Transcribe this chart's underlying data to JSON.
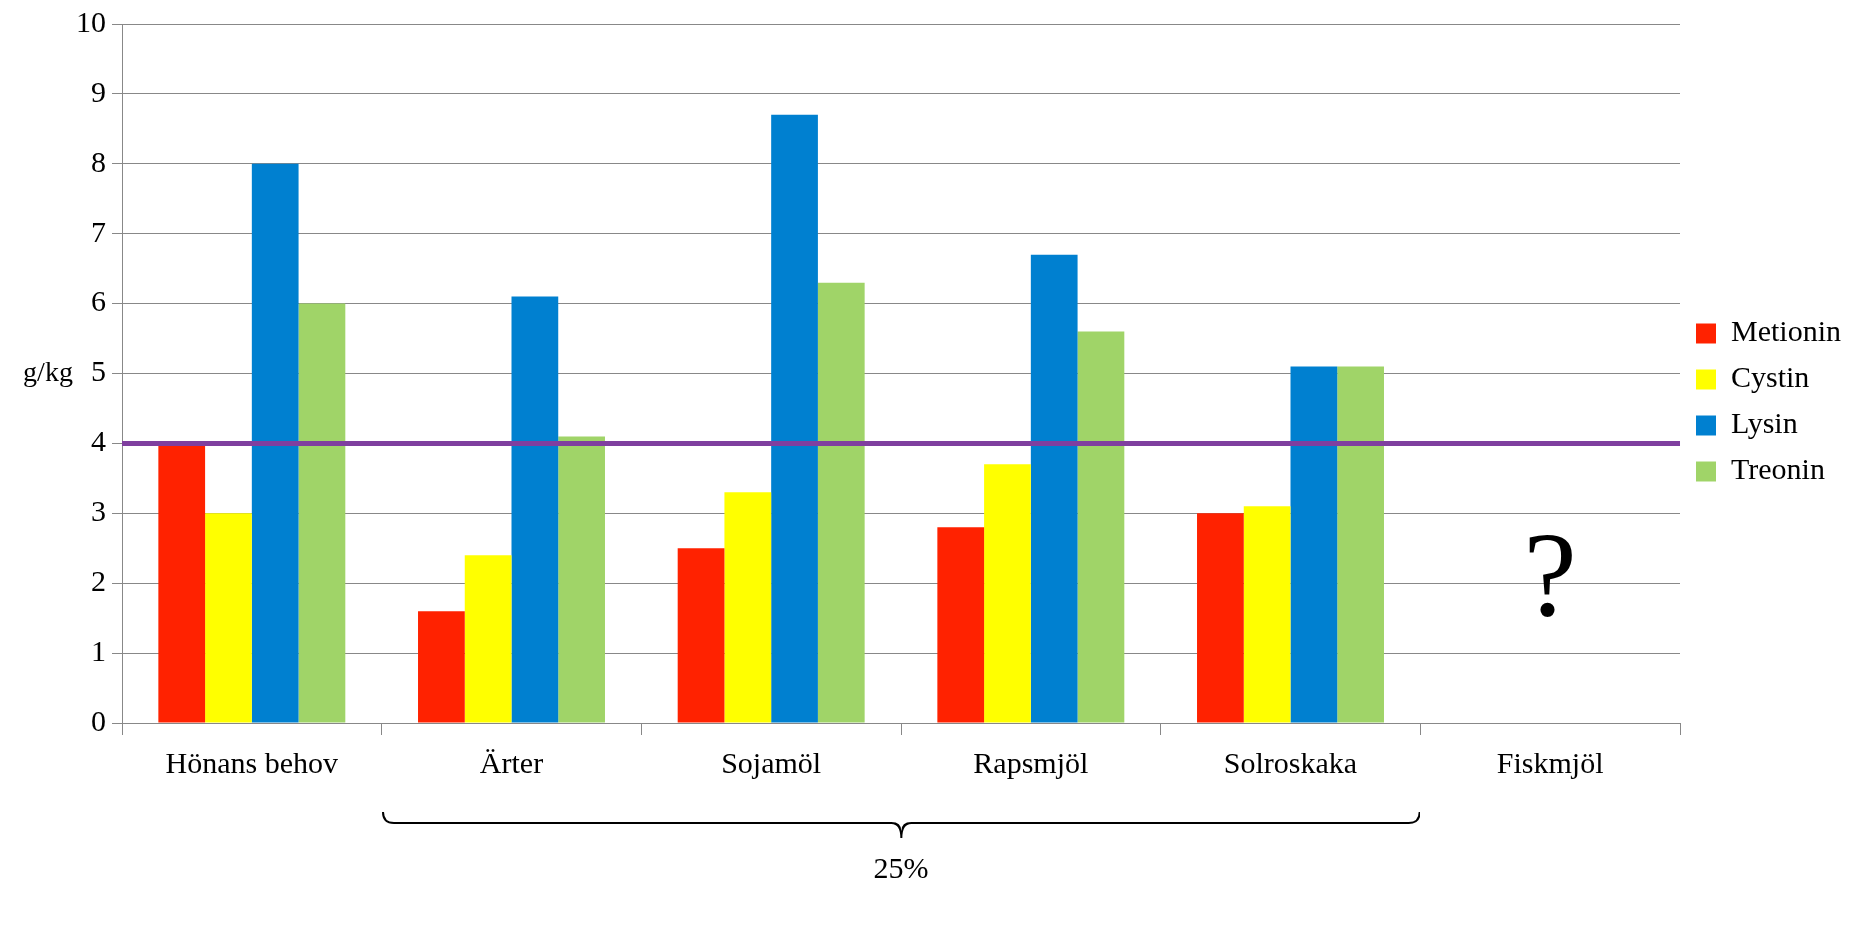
{
  "chart_data": {
    "type": "bar",
    "ylabel": "g/kg",
    "categories": [
      "Hönans behov",
      "Ärter",
      "Sojamöl",
      "Rapsmjöl",
      "Solroskaka",
      "Fiskmjöl"
    ],
    "series": [
      {
        "name": "Metionin",
        "color": "#ff2200",
        "values": [
          4.0,
          1.6,
          2.5,
          2.8,
          3.0,
          null
        ]
      },
      {
        "name": "Cystin",
        "color": "#ffff00",
        "values": [
          3.0,
          2.4,
          3.3,
          3.7,
          3.1,
          null
        ]
      },
      {
        "name": "Lysin",
        "color": "#0080d0",
        "values": [
          8.0,
          6.1,
          8.7,
          6.7,
          5.1,
          null
        ]
      },
      {
        "name": "Treonin",
        "color": "#a0d468",
        "values": [
          6.0,
          4.1,
          6.3,
          5.6,
          5.1,
          null
        ]
      }
    ],
    "ylim": [
      0,
      10
    ],
    "yticks": [
      0,
      1,
      2,
      3,
      4,
      5,
      6,
      7,
      8,
      9,
      10
    ],
    "grid": "y",
    "legend": "right",
    "ref_lines": [
      {
        "axis": "y",
        "value": 4,
        "color": "#7f3f9f"
      }
    ],
    "annotations": [
      "?",
      "25%"
    ]
  }
}
